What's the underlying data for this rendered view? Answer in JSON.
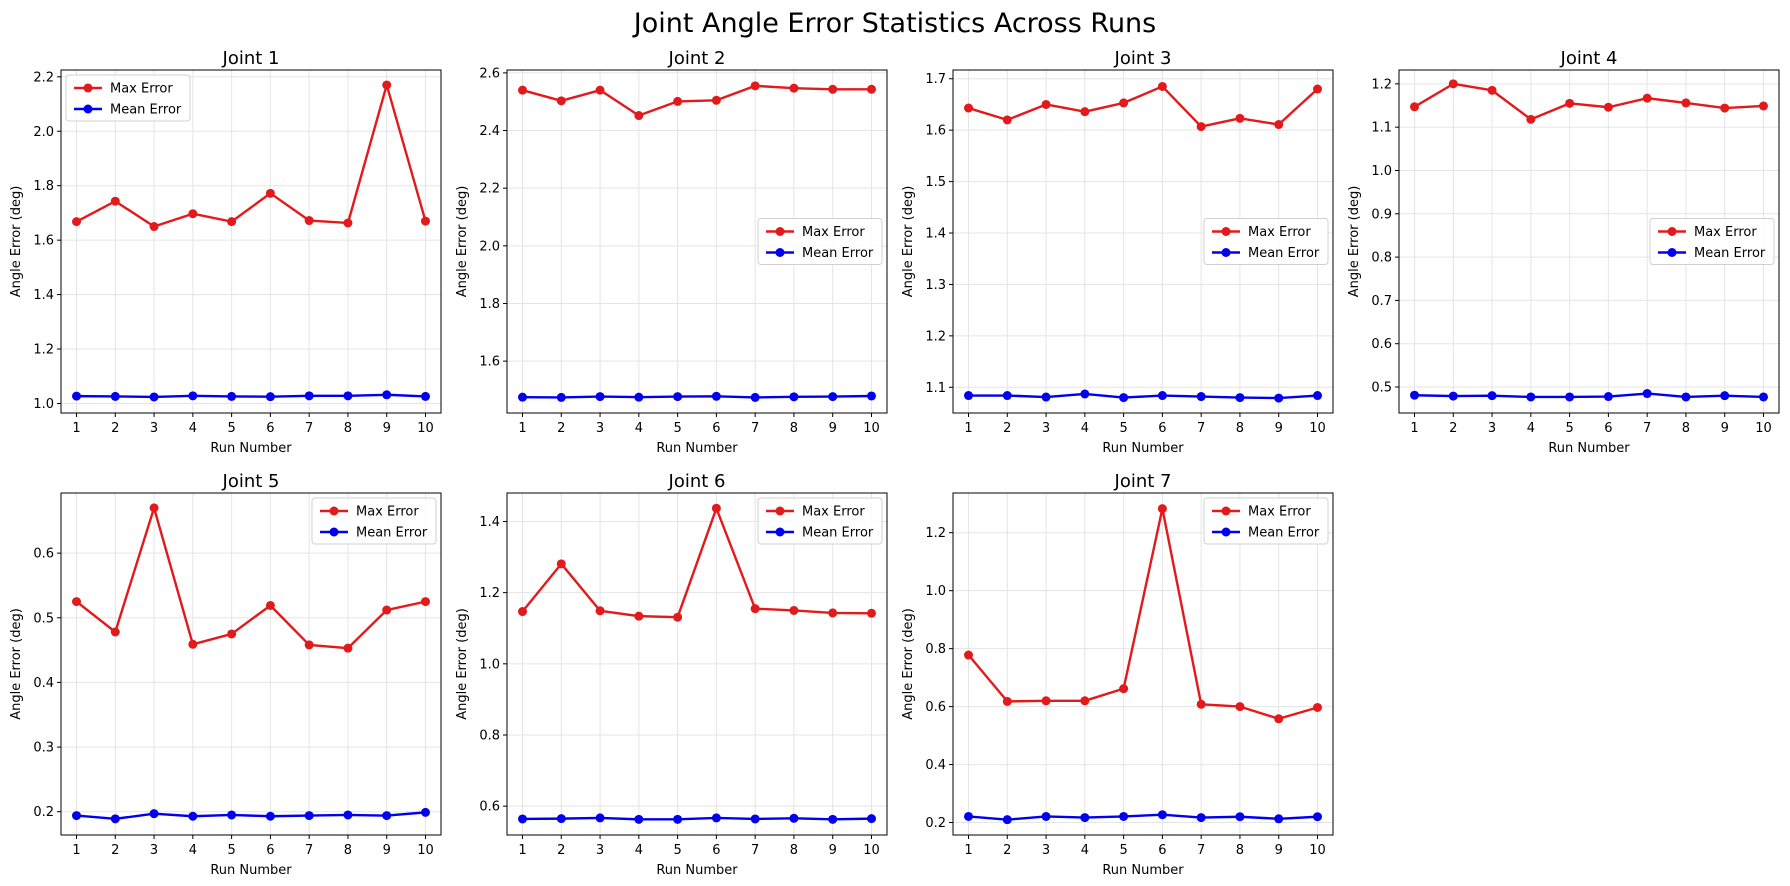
{
  "figure": {
    "title": "Joint Angle Error Statistics Across Runs",
    "colors": {
      "max": "#e31a1c",
      "mean": "#0000ee",
      "grid": "#e5e5e5",
      "axis": "#000000"
    }
  },
  "chart_data": [
    {
      "type": "line",
      "title": "Joint 1",
      "xlabel": "Run Number",
      "ylabel": "Angle Error (deg)",
      "x": [
        1,
        2,
        3,
        4,
        5,
        6,
        7,
        8,
        9,
        10
      ],
      "ylim": [
        0.965,
        2.225
      ],
      "yticks": [
        "1.0",
        "1.2",
        "1.4",
        "1.6",
        "1.8",
        "2.0",
        "2.2"
      ],
      "legend": "upper left",
      "grid": true,
      "series": [
        {
          "name": "Max Error",
          "color": "#e31a1c",
          "values": [
            1.668,
            1.743,
            1.65,
            1.697,
            1.668,
            1.772,
            1.672,
            1.663,
            2.17,
            1.67
          ]
        },
        {
          "name": "Mean Error",
          "color": "#0000ee",
          "values": [
            1.027,
            1.026,
            1.024,
            1.028,
            1.026,
            1.025,
            1.028,
            1.028,
            1.032,
            1.026
          ]
        }
      ]
    },
    {
      "type": "line",
      "title": "Joint 2",
      "xlabel": "Run Number",
      "ylabel": "Angle Error (deg)",
      "x": [
        1,
        2,
        3,
        4,
        5,
        6,
        7,
        8,
        9,
        10
      ],
      "ylim": [
        1.42,
        2.61
      ],
      "yticks": [
        "1.6",
        "1.8",
        "2.0",
        "2.2",
        "2.4",
        "2.6"
      ],
      "legend": "center right",
      "grid": true,
      "series": [
        {
          "name": "Max Error",
          "color": "#e31a1c",
          "values": [
            2.54,
            2.503,
            2.54,
            2.452,
            2.501,
            2.505,
            2.555,
            2.547,
            2.543,
            2.543
          ]
        },
        {
          "name": "Mean Error",
          "color": "#0000ee",
          "values": [
            1.475,
            1.474,
            1.477,
            1.475,
            1.477,
            1.478,
            1.474,
            1.476,
            1.477,
            1.479
          ]
        }
      ]
    },
    {
      "type": "line",
      "title": "Joint 3",
      "xlabel": "Run Number",
      "ylabel": "Angle Error (deg)",
      "x": [
        1,
        2,
        3,
        4,
        5,
        6,
        7,
        8,
        9,
        10
      ],
      "ylim": [
        1.05,
        1.717
      ],
      "yticks": [
        "1.1",
        "1.2",
        "1.3",
        "1.4",
        "1.5",
        "1.6",
        "1.7"
      ],
      "legend": "center right",
      "grid": true,
      "series": [
        {
          "name": "Max Error",
          "color": "#e31a1c",
          "values": [
            1.643,
            1.62,
            1.65,
            1.636,
            1.653,
            1.685,
            1.607,
            1.623,
            1.611,
            1.68
          ]
        },
        {
          "name": "Mean Error",
          "color": "#0000ee",
          "values": [
            1.084,
            1.084,
            1.081,
            1.087,
            1.08,
            1.084,
            1.082,
            1.08,
            1.079,
            1.084
          ]
        }
      ]
    },
    {
      "type": "line",
      "title": "Joint 4",
      "xlabel": "Run Number",
      "ylabel": "Angle Error (deg)",
      "x": [
        1,
        2,
        3,
        4,
        5,
        6,
        7,
        8,
        9,
        10
      ],
      "ylim": [
        0.44,
        1.232
      ],
      "yticks": [
        "0.5",
        "0.6",
        "0.7",
        "0.8",
        "0.9",
        "1.0",
        "1.1",
        "1.2"
      ],
      "legend": "center right",
      "grid": true,
      "series": [
        {
          "name": "Max Error",
          "color": "#e31a1c",
          "values": [
            1.147,
            1.2,
            1.185,
            1.118,
            1.155,
            1.146,
            1.167,
            1.156,
            1.144,
            1.149
          ]
        },
        {
          "name": "Mean Error",
          "color": "#0000ee",
          "values": [
            0.481,
            0.479,
            0.48,
            0.477,
            0.477,
            0.478,
            0.485,
            0.477,
            0.48,
            0.477
          ]
        }
      ]
    },
    {
      "type": "line",
      "title": "Joint 5",
      "xlabel": "Run Number",
      "ylabel": "Angle Error (deg)",
      "x": [
        1,
        2,
        3,
        4,
        5,
        6,
        7,
        8,
        9,
        10
      ],
      "ylim": [
        0.164,
        0.693
      ],
      "yticks": [
        "0.2",
        "0.3",
        "0.4",
        "0.5",
        "0.6"
      ],
      "legend": "upper right",
      "grid": true,
      "series": [
        {
          "name": "Max Error",
          "color": "#e31a1c",
          "values": [
            0.525,
            0.478,
            0.67,
            0.459,
            0.475,
            0.519,
            0.458,
            0.453,
            0.512,
            0.525
          ]
        },
        {
          "name": "Mean Error",
          "color": "#0000ee",
          "values": [
            0.194,
            0.189,
            0.197,
            0.193,
            0.195,
            0.193,
            0.194,
            0.195,
            0.194,
            0.199
          ]
        }
      ]
    },
    {
      "type": "line",
      "title": "Joint 6",
      "xlabel": "Run Number",
      "ylabel": "Angle Error (deg)",
      "x": [
        1,
        2,
        3,
        4,
        5,
        6,
        7,
        8,
        9,
        10
      ],
      "ylim": [
        0.519,
        1.48
      ],
      "yticks": [
        "0.6",
        "0.8",
        "1.0",
        "1.2",
        "1.4"
      ],
      "legend": "upper right",
      "grid": true,
      "series": [
        {
          "name": "Max Error",
          "color": "#e31a1c",
          "values": [
            1.147,
            1.281,
            1.149,
            1.134,
            1.131,
            1.437,
            1.155,
            1.15,
            1.143,
            1.142
          ]
        },
        {
          "name": "Mean Error",
          "color": "#0000ee",
          "values": [
            0.564,
            0.565,
            0.567,
            0.563,
            0.563,
            0.567,
            0.564,
            0.566,
            0.563,
            0.565
          ]
        }
      ]
    },
    {
      "type": "line",
      "title": "Joint 7",
      "xlabel": "Run Number",
      "ylabel": "Angle Error (deg)",
      "x": [
        1,
        2,
        3,
        4,
        5,
        6,
        7,
        8,
        9,
        10
      ],
      "ylim": [
        0.157,
        1.337
      ],
      "yticks": [
        "0.2",
        "0.4",
        "0.6",
        "0.8",
        "1.0",
        "1.2"
      ],
      "legend": "upper right",
      "grid": true,
      "series": [
        {
          "name": "Max Error",
          "color": "#e31a1c",
          "values": [
            0.778,
            0.618,
            0.62,
            0.62,
            0.662,
            1.283,
            0.608,
            0.6,
            0.558,
            0.597
          ]
        },
        {
          "name": "Mean Error",
          "color": "#0000ee",
          "values": [
            0.221,
            0.21,
            0.221,
            0.217,
            0.221,
            0.227,
            0.217,
            0.22,
            0.213,
            0.22
          ]
        }
      ]
    }
  ]
}
